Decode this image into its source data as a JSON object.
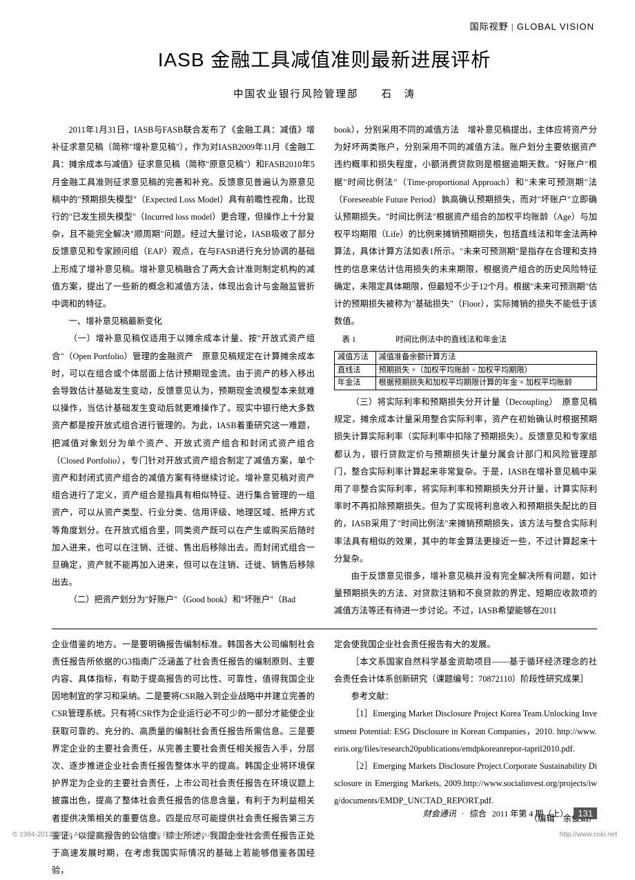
{
  "header": {
    "cn": "国际视野",
    "sep": " | ",
    "en": "GLOBAL VISION"
  },
  "title": "IASB 金融工具减值准则最新进展评析",
  "author_org": "中国农业银行风险管理部",
  "author_name": "石　涛",
  "upper": {
    "left": [
      "2011年1月31日，IASB与FASB联合发布了《金融工具：减值》增补征求意见稿（简称\"增补意见稿\"），作为对IASB2009年11月《金融工具：摊余成本与减值》征求意见稿（简称\"原意见稿\"）和FASB2010年5月金融工具准则征求意见稿的完善和补充。反馈意见普遍认为原意见稿中的\"预期损失模型\"（Expected Loss Model）具有前瞻性视角，比现行的\"已发生损失模型\"（Incurred loss model）更合理，但操作上十分复杂，且不能完全解决\"顺周期\"问题。经过大量讨论，IASB吸收了部分反馈意见和专家顾问组（EAP）观点，在与FASB进行充分协调的基础上形成了增补意见稿。增补意见稿融合了两大会计准则制定机构的减值方案，提出了一些新的概念和减值方法，体现出会计与金融监管折中调和的特征。",
      "一、增补意见稿最新变化",
      "（一）增补意见稿仅适用于以摊余成本计量、按\"开放式资产组合\"（Open Portfolio）管理的金融资产　原意见稿规定在计算摊余成本时，可以在组合或个体层面上估计预期现金流。由于资产的移入移出会导致估计基础发生变动，反馈意见认为，预期现金流模型本来就难以操作，当估计基础发生变动后就更难操作了。现实中银行绝大多数资产都是按开放式组合进行管理的。为此，IASB着重研究这一难题，把减值对象划分为单个资产、开放式资产组合和封闭式资产组合（Closed Portfolio），专门针对开放式资产组合制定了减值方案，单个资产和封闭式资产组合的减值方案有待继续讨论。增补意见稿对资产组合进行了定义，资产组合是指具有相似特征、进行集合管理的一组资产，可以从资产类型、行业分类、信用评级、地理区域、抵押方式等角度划分。在开放式组合里，同类资产既可以在产生或购买后随时加入进来，也可以在注销、迁徙、售出后移除出去。而封闭式组合一旦确定，资产就不能再加入进来，但可以在注销、迁徙、销售后移除出去。",
      "（二）把资产划分为\"好账户\"（Good book）和\"坏账户\"（Bad"
    ],
    "right_pre": [
      "book），分别采用不同的减值方法　增补意见稿提出，主体应将资产分为好坏两类账户，分别采用不同的减值方法。账户划分主要依据资产违约概率和损失程度，小额消费贷款则是根据逾期天数。\"好账户\"根据\"时间比例法\"（Time-proportional Approach）和\"未来可预测期\"法（Foreseeable Future Period）孰高确认预期损失，而对\"坏账户\"立即确认预期损失。\"时间比例法\"根据资产组合的加权平均账龄（Age）与加权平均期限（Life）的比例来摊销预期损失，包括直线法和年金法两种算法，具体计算方法如表1所示。\"未来可预测期\"是指存在合理和支持性的信息来估计信用损失的未来期限，根据资产组合的历史风险特征确定，未限定具体期限，但最短不少于12个月。根据\"未来可预测期\"估计的预期损失被称为\"基础损失\"（Floor），实际摊销的损失不能低于该数值。"
    ],
    "table": {
      "caption": "表 1　　　　　时间比例法中的直线法和年金法",
      "rows": [
        [
          "减值方法",
          "减值准备余额计算方法"
        ],
        [
          "直线法",
          "预期损失 ×（加权平均账龄 ÷ 加权平均期限）"
        ],
        [
          "年金法",
          "根据预期损失和加权平均期限计算的年金 × 加权平均账龄"
        ]
      ]
    },
    "right_post": [
      "（三）将实际利率和预期损失分开计量（Decoupling）　原意见稿规定，摊余成本计量采用整合实际利率，资产在初始确认时根据预期损失计算实际利率（实际利率中扣除了预期损失）。反馈意见和专家组都认为，银行贷款定价与预期损失计量分属会计部门和风险管理部门，整合实际利率计算起来非常复杂。于是，IASB在增补意见稿中采用了非整合实际利率，将实际利率和预期损失分开计量，计算实际利率时不再扣除预期损失。但为了实现将利息收入和预期损失配比的目的，IASB采用了\"时间比例法\"来摊销预期损失，该方法与整合实际利率法具有相似的效果，其中的年金算法更接近一些，不过计算起来十分复杂。",
      "由于反馈意见很多，增补意见稿并没有完全解决所有问题，如计量预期损失的方法、对贷款注销和不良贷款的界定、短期应收款项的减值方法等还有待进一步讨论。不过，IASB希望能够在2011"
    ]
  },
  "lower": {
    "left": [
      "企业借鉴的地方。一是要明确报告编制标准。韩国各大公司编制社会责任报告所依据的G3指南广泛涵盖了社会责任报告的编制原则、主要内容、具体指标，有助于提高报告的可比性、可靠性，值得我国企业因地制宜的学习和采纳。二是要将CSR融入到企业战略中并建立完善的CSR管理系统。只有将CSR作为企业运行必不可少的一部分才能使企业获取可靠的、充分的、高质量的编制社会责任报告所需信息。三是要界定企业的主要社会责任，从完善主要社会责任相关报告入手，分层次、逐步推进企业社会责任报告整体水平的提高。韩国企业将环境保护界定为企业的主要社会责任，上市公司社会责任报告在环境议题上披露出色，提高了整体社会责任报告的信息含量，有利于为利益相关者提供决策相关的重要信息。四是应尽可能提供社会责任报告第三方鉴证，以提高报告的公信度。综上所述，我国企业社会责任报告正处于高速发展时期，在考虑我国实际情况的基础上若能够借鉴各国经验，"
    ],
    "right": [
      "定会使我国企业社会责任报告有大的发展。",
      "",
      "［本文系国家自然科学基金资助项目——基于循环经济理念的社会责任会计体系创新研究（课题编号：70872110）阶段性研究成果］",
      "参考文献：",
      "［1］Emerging Market Disclosure Project Korea Team.Unlocking Investment Potential: ESG Disclosure in Korean Companies，2010. http://www.eiris.org/files/research20publications/emdpkoreanrepor-tapril2010.pdf.",
      "［2］Emerging Markets Disclosure Project.Corporate Sustainability Disclosure in Emerging Markets, 2009.http://www.socialinvest.org/projects/iwg/documents/EMDP_UNCTAD_REPORT.pdf.",
      "（编辑　余俊娟）"
    ]
  },
  "footer": {
    "pub": "财会通讯",
    "dot": "·",
    "type": "综合",
    "issue": "2011 年第 4 期（上）",
    "page": "131"
  },
  "copyright": "© 1994-2013 China Academic Journal Electronic Publishing House. All rights reserved.",
  "cnki": "http://www.cnki.net"
}
